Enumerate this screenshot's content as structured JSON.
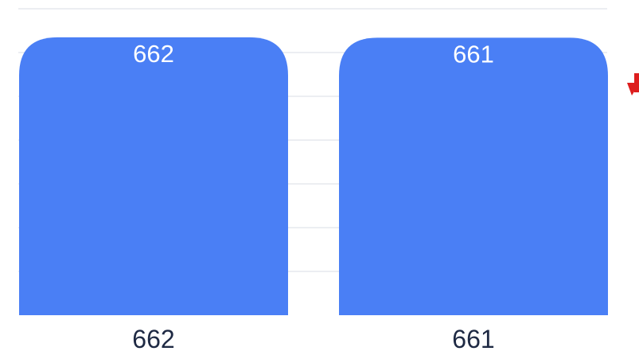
{
  "chart_data": {
    "type": "bar",
    "categories": [
      "662",
      "661"
    ],
    "values": [
      662,
      661
    ],
    "data_labels": [
      "662",
      "661"
    ],
    "ylim": [
      0,
      730
    ],
    "grid": true,
    "legend": "none",
    "colors": {
      "bar": "#4a7ff5",
      "grid": "#d9dee6",
      "indicator": "#dd1e1e",
      "tick_text": "#1f2a44",
      "label_text": "#ffffff"
    },
    "indicator_icon": "arrow-down-icon"
  }
}
